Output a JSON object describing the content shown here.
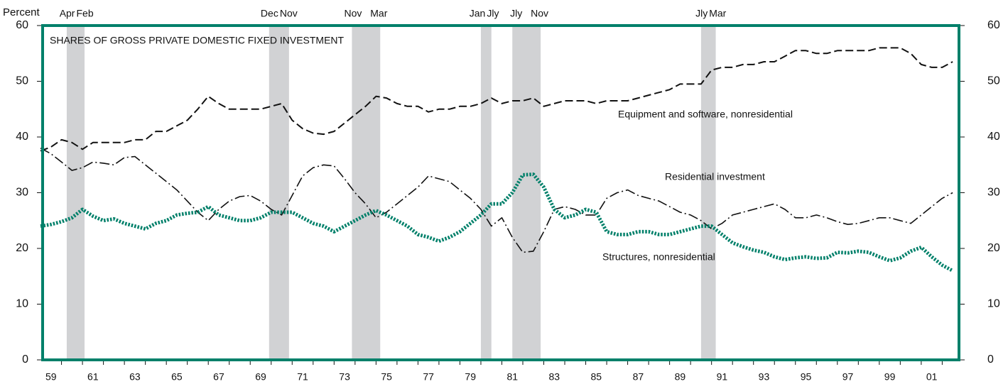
{
  "chart_data": {
    "type": "line",
    "title": "SHARES OF GROSS PRIVATE DOMESTIC FIXED INVESTMENT",
    "y_axis_label": "Percent",
    "xlim": [
      1959.1,
      2002.8
    ],
    "ylim": [
      0,
      60
    ],
    "yticks": [
      0,
      10,
      20,
      30,
      40,
      50,
      60
    ],
    "y2lim": [
      0,
      60
    ],
    "y2ticks": [
      0,
      10,
      20,
      30,
      40,
      50,
      60
    ],
    "xticks": [
      {
        "value": 1959,
        "label": "59"
      },
      {
        "value": 1961,
        "label": "61"
      },
      {
        "value": 1963,
        "label": "63"
      },
      {
        "value": 1965,
        "label": "65"
      },
      {
        "value": 1967,
        "label": "67"
      },
      {
        "value": 1969,
        "label": "69"
      },
      {
        "value": 1971,
        "label": "71"
      },
      {
        "value": 1973,
        "label": "73"
      },
      {
        "value": 1975,
        "label": "75"
      },
      {
        "value": 1977,
        "label": "77"
      },
      {
        "value": 1979,
        "label": "79"
      },
      {
        "value": 1981,
        "label": "81"
      },
      {
        "value": 1983,
        "label": "83"
      },
      {
        "value": 1985,
        "label": "85"
      },
      {
        "value": 1987,
        "label": "87"
      },
      {
        "value": 1989,
        "label": "89"
      },
      {
        "value": 1991,
        "label": "91"
      },
      {
        "value": 1993,
        "label": "93"
      },
      {
        "value": 1995,
        "label": "95"
      },
      {
        "value": 1997,
        "label": "97"
      },
      {
        "value": 1999,
        "label": "99"
      },
      {
        "value": 2001,
        "label": "01"
      }
    ],
    "recessions": [
      {
        "start": 1960.25,
        "end": 1961.1,
        "start_label": "Apr",
        "end_label": "Feb"
      },
      {
        "start": 1969.9,
        "end": 1970.85,
        "start_label": "Dec",
        "end_label": "Nov"
      },
      {
        "start": 1973.85,
        "end": 1975.2,
        "start_label": "Nov",
        "end_label": "Mar"
      },
      {
        "start": 1980.0,
        "end": 1980.5,
        "start_label": "Jan",
        "end_label": "Jly"
      },
      {
        "start": 1981.5,
        "end": 1982.85,
        "start_label": "Jly",
        "end_label": "Nov"
      },
      {
        "start": 1990.5,
        "end": 1991.2,
        "start_label": "Jly",
        "end_label": "Mar"
      }
    ],
    "recession_color": "#d1d2d4",
    "frame_color": "#00806a",
    "x": [
      1959,
      1959.5,
      1960,
      1960.5,
      1961,
      1961.5,
      1962,
      1962.5,
      1963,
      1963.5,
      1964,
      1964.5,
      1965,
      1965.5,
      1966,
      1966.5,
      1967,
      1967.5,
      1968,
      1968.5,
      1969,
      1969.5,
      1970,
      1970.5,
      1971,
      1971.5,
      1972,
      1972.5,
      1973,
      1973.5,
      1974,
      1974.5,
      1975,
      1975.5,
      1976,
      1976.5,
      1977,
      1977.5,
      1978,
      1978.5,
      1979,
      1979.5,
      1980,
      1980.5,
      1981,
      1981.5,
      1982,
      1982.5,
      1983,
      1983.5,
      1984,
      1984.5,
      1985,
      1985.5,
      1986,
      1986.5,
      1987,
      1987.5,
      1988,
      1988.5,
      1989,
      1989.5,
      1990,
      1990.5,
      1991,
      1991.5,
      1992,
      1992.5,
      1993,
      1993.5,
      1994,
      1994.5,
      1995,
      1995.5,
      1996,
      1996.5,
      1997,
      1997.5,
      1998,
      1998.5,
      1999,
      1999.5,
      2000,
      2000.5,
      2001,
      2001.5,
      2002,
      2002.5
    ],
    "series": [
      {
        "name": "Equipment and software, nonresidential",
        "color": "#111111",
        "style": "dashed",
        "values": [
          37.5,
          38.2,
          39.5,
          39,
          37.8,
          39,
          39,
          39,
          39,
          39.5,
          39.5,
          41,
          41,
          42,
          43,
          45,
          47.3,
          46,
          45,
          45,
          45,
          45,
          45.5,
          46,
          43,
          41.5,
          40.7,
          40.5,
          41,
          42.5,
          44,
          45.5,
          47.3,
          47,
          46,
          45.5,
          45.5,
          44.5,
          45,
          45,
          45.5,
          45.5,
          46,
          47,
          46,
          46.5,
          46.5,
          47,
          45.5,
          46,
          46.5,
          46.5,
          46.5,
          46,
          46.5,
          46.5,
          46.5,
          47,
          47.5,
          48,
          48.5,
          49.5,
          49.5,
          49.5,
          52,
          52.5,
          52.5,
          53,
          53,
          53.5,
          53.5,
          54.5,
          55.5,
          55.5,
          55,
          55,
          55.5,
          55.5,
          55.5,
          55.5,
          56,
          56,
          56,
          55,
          53,
          52.5,
          52.5,
          53.5
        ]
      },
      {
        "name": "Residential investment",
        "color": "#111111",
        "style": "dashdot",
        "values": [
          38,
          37,
          35.5,
          34,
          34.5,
          35.5,
          35.3,
          35,
          36.3,
          36.5,
          35,
          33.5,
          32,
          30.5,
          28.5,
          26.5,
          25,
          27,
          28.5,
          29.3,
          29.5,
          28.5,
          27,
          26,
          29.5,
          33,
          34.5,
          35,
          34.8,
          32.5,
          30,
          28,
          25.5,
          26.5,
          28,
          29.5,
          31,
          33,
          32.5,
          32,
          30.5,
          29,
          27,
          24,
          25.5,
          22,
          19.3,
          19.5,
          23,
          27,
          27.5,
          27,
          26,
          26,
          29,
          30,
          30.5,
          29.5,
          29,
          28.5,
          27.5,
          26.5,
          26,
          25,
          23.5,
          24.5,
          26,
          26.5,
          27,
          27.5,
          28,
          27,
          25.5,
          25.5,
          26,
          25.5,
          24.8,
          24.3,
          24.5,
          25,
          25.5,
          25.5,
          25,
          24.5,
          26,
          27.5,
          29,
          30
        ]
      },
      {
        "name": "Structures, nonresidential",
        "color": "#00806a",
        "style": "dotted",
        "values": [
          24,
          24.3,
          24.8,
          25.5,
          27,
          25.8,
          25,
          25.3,
          24.5,
          24,
          23.5,
          24.5,
          25,
          26,
          26.3,
          26.5,
          27.5,
          26,
          25.5,
          25,
          25,
          25.5,
          26.5,
          26.5,
          26.5,
          25.5,
          24.5,
          24,
          23,
          24,
          25,
          26,
          26.8,
          26,
          25,
          24,
          22.5,
          22,
          21.3,
          22,
          23,
          24.5,
          26,
          28,
          28,
          30,
          33.2,
          33.3,
          31,
          27,
          25.5,
          26,
          27,
          26.5,
          23,
          22.5,
          22.5,
          23,
          23,
          22.5,
          22.5,
          23,
          23.5,
          24,
          24,
          22.5,
          21,
          20.3,
          19.7,
          19.3,
          18.5,
          18,
          18.3,
          18.5,
          18.2,
          18.3,
          19.3,
          19.2,
          19.5,
          19.3,
          18.5,
          17.8,
          18.3,
          19.5,
          20.2,
          18.5,
          17,
          16
        ]
      }
    ]
  }
}
